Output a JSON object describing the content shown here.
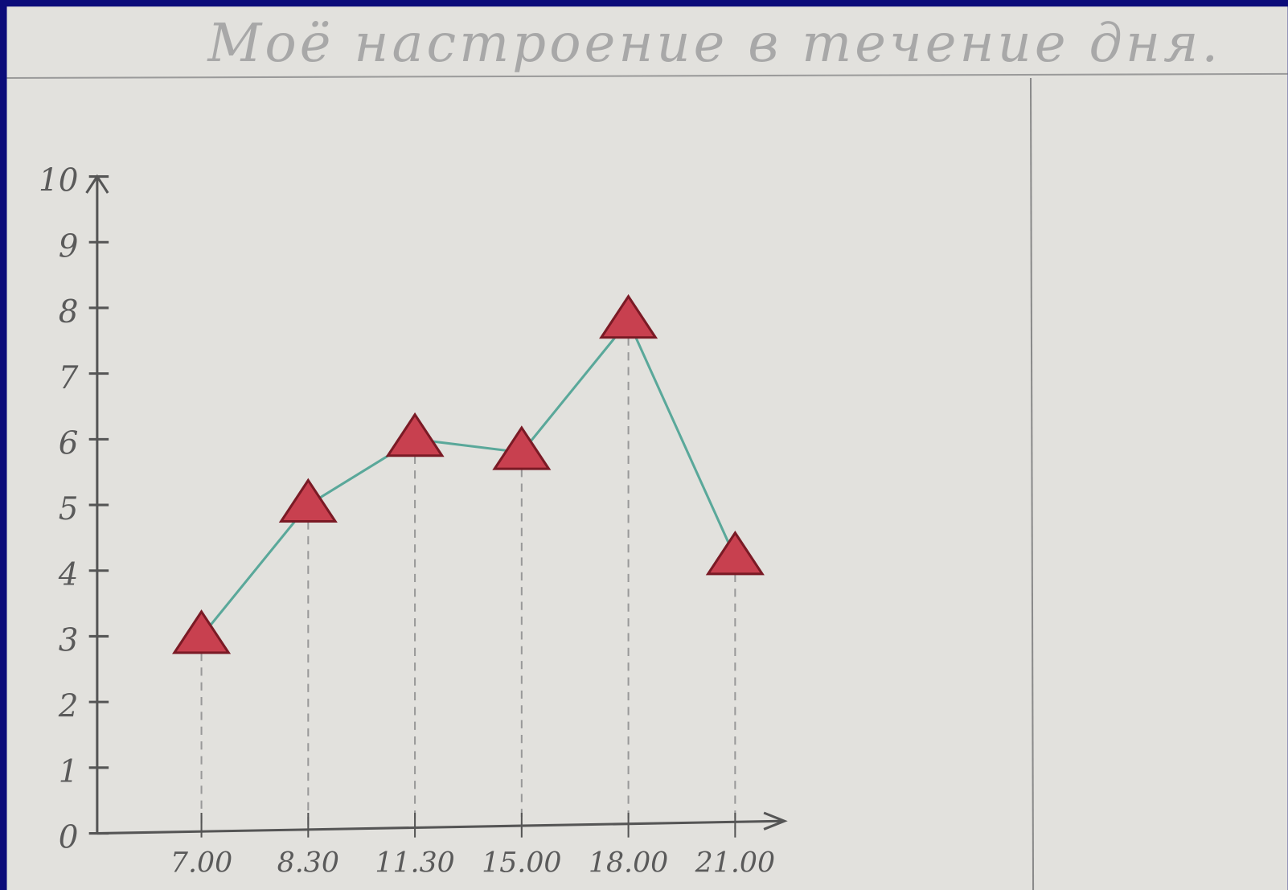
{
  "chart_data": {
    "type": "line",
    "title": "Моё настроение в течение дня.",
    "categories": [
      "7.00",
      "8.30",
      "11.30",
      "15.00",
      "18.00",
      "21.00"
    ],
    "values": [
      3,
      5,
      6,
      5.8,
      7.8,
      4.2
    ],
    "color": "#5aa89a",
    "marker_color": "#c8404f",
    "ylim": [
      0,
      10
    ],
    "yticks": [
      0,
      1,
      2,
      3,
      4,
      5,
      6,
      7,
      8,
      9,
      10
    ]
  }
}
